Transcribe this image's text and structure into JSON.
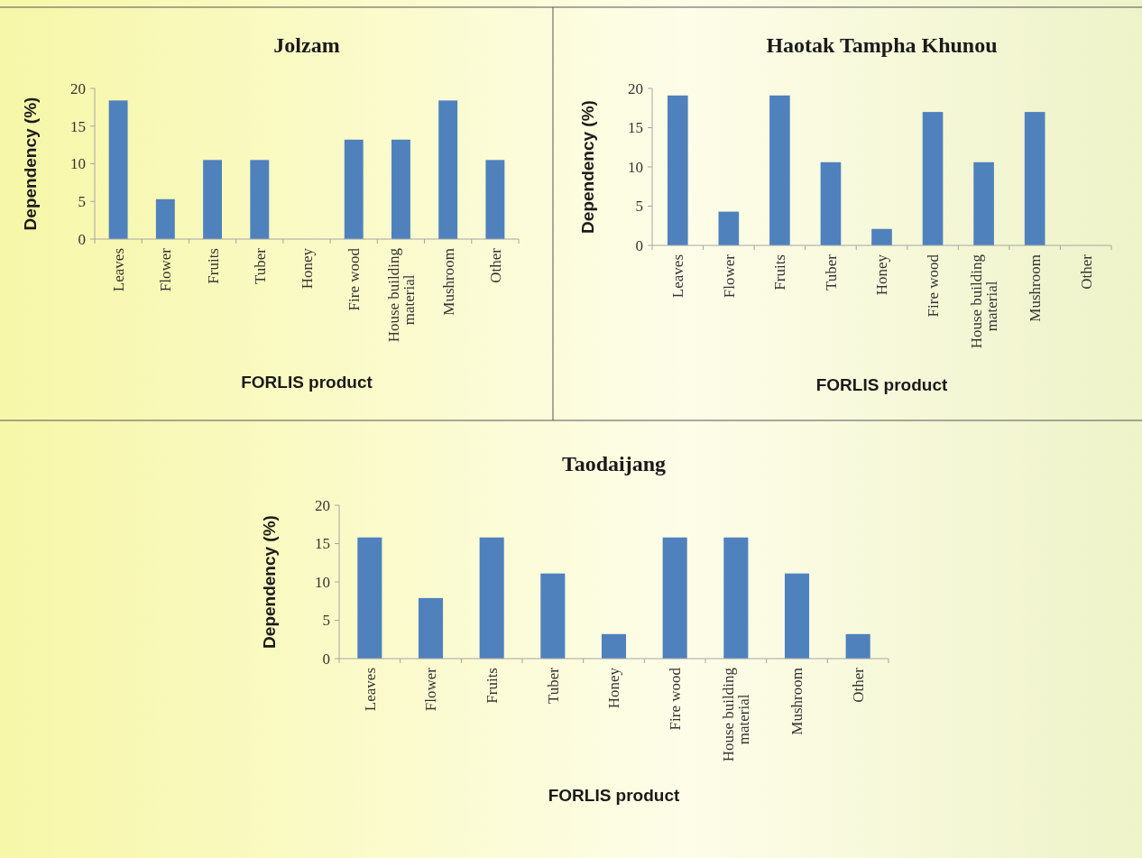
{
  "chart_data": [
    {
      "type": "bar",
      "title": "Jolzam",
      "xlabel": "FORLIS product",
      "ylabel": "Dependency (%)",
      "categories": [
        "Leaves",
        "Flower",
        "Fruits",
        "Tuber",
        "Honey",
        "Fire wood",
        "House building material",
        "Mushroom",
        "Other"
      ],
      "values": [
        18.4,
        5.3,
        10.5,
        10.5,
        0,
        13.2,
        13.2,
        18.4,
        10.5
      ],
      "color": "#4f81bd",
      "ylim": [
        0,
        20
      ],
      "yticks": [
        0,
        5,
        10,
        15,
        20
      ],
      "grid": false
    },
    {
      "type": "bar",
      "title": "Haotak Tampha Khunou",
      "xlabel": "FORLIS product",
      "ylabel": "Dependency (%)",
      "categories": [
        "Leaves",
        "Flower",
        "Fruits",
        "Tuber",
        "Honey",
        "Fire wood",
        "House building material",
        "Mushroom",
        "Other"
      ],
      "values": [
        19.1,
        4.3,
        19.1,
        10.6,
        2.1,
        17.0,
        10.6,
        17.0,
        0
      ],
      "color": "#4f81bd",
      "ylim": [
        0,
        20
      ],
      "yticks": [
        0,
        5,
        10,
        15,
        20
      ],
      "grid": false
    },
    {
      "type": "bar",
      "title": "Taodaijang",
      "xlabel": "FORLIS product",
      "ylabel": "Dependency (%)",
      "categories": [
        "Leaves",
        "Flower",
        "Fruits",
        "Tuber",
        "Honey",
        "Fire wood",
        "House building material",
        "Mushroom",
        "Other"
      ],
      "values": [
        15.8,
        7.9,
        15.8,
        11.1,
        3.2,
        15.8,
        15.8,
        11.1,
        3.2
      ],
      "color": "#4f81bd",
      "ylim": [
        0,
        20
      ],
      "yticks": [
        0,
        5,
        10,
        15,
        20
      ],
      "grid": false
    }
  ]
}
